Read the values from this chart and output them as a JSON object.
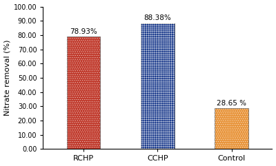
{
  "categories": [
    "RCHP",
    "CCHP",
    "Control"
  ],
  "values": [
    78.93,
    88.38,
    28.65
  ],
  "labels": [
    "78.93%",
    "88.38%",
    "28.65 %"
  ],
  "bar_colors": [
    "#c0392b",
    "#1a3a8c",
    "#e8943a"
  ],
  "hatch_colors": [
    "#d4726a",
    "#6a8fd4",
    "#e8c49a"
  ],
  "ylabel": "Nitrate removal (%)",
  "ylim": [
    0,
    100
  ],
  "yticks": [
    0,
    10,
    20,
    30,
    40,
    50,
    60,
    70,
    80,
    90,
    100
  ],
  "ytick_labels": [
    "0.00",
    "10.00",
    "20.00",
    "30.00",
    "40.00",
    "50.00",
    "60.00",
    "70.00",
    "80.00",
    "90.00",
    "100.00"
  ],
  "background_color": "#ffffff",
  "label_fontsize": 7.5,
  "ylabel_fontsize": 8,
  "tick_fontsize": 7,
  "xticklabel_fontsize": 8
}
